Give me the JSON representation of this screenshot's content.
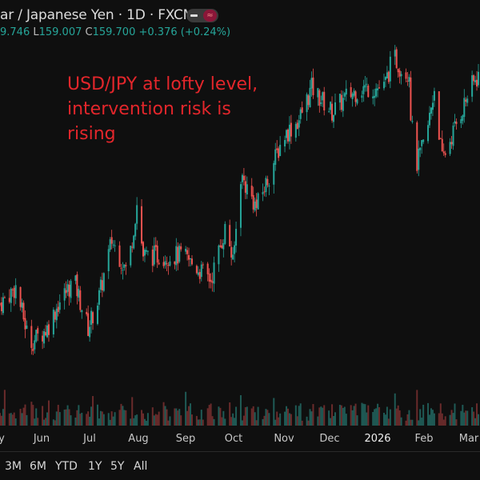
{
  "header": {
    "title": "ar / Japanese Yen · 1D · FXCM",
    "ohlc": {
      "h": "9.746",
      "l_label": "L",
      "l": "159.007",
      "c_label": "C",
      "c": "159.700",
      "change": "+0.376 (+0.24%)"
    }
  },
  "annotation": [
    "USD/JPY at lofty level,",
    "intervention risk is",
    "rising"
  ],
  "colors": {
    "up": "#26a69a",
    "down": "#ef5350",
    "annotation": "#e3262b",
    "background": "#0f0f0f"
  },
  "x_axis_labels": [
    "y",
    "Jun",
    "Jul",
    "Aug",
    "Sep",
    "Oct",
    "Nov",
    "Dec",
    "2026",
    "Feb",
    "Mar"
  ],
  "range_buttons": [
    "3M",
    "6M",
    "YTD",
    "1Y",
    "5Y",
    "All"
  ],
  "chart_data": {
    "type": "candlestick",
    "title": "",
    "series_note": "approximate close path read visually (no price axis visible)",
    "y_range": [
      139,
      163
    ],
    "x_range": [
      "2025-05-06",
      "2026-03-06"
    ],
    "close_path": [
      [
        "2025-05-06",
        144.6
      ],
      [
        "2025-05-16",
        145.7
      ],
      [
        "2025-05-25",
        142.0
      ],
      [
        "2025-05-31",
        142.5
      ],
      [
        "2025-06-05",
        143.0
      ],
      [
        "2025-06-12",
        144.6
      ],
      [
        "2025-06-22",
        146.2
      ],
      [
        "2025-07-01",
        143.0
      ],
      [
        "2025-07-08",
        145.1
      ],
      [
        "2025-07-16",
        148.8
      ],
      [
        "2025-07-26",
        146.7
      ],
      [
        "2025-08-01",
        151.2
      ],
      [
        "2025-08-05",
        147.8
      ],
      [
        "2025-08-15",
        147.8
      ],
      [
        "2025-08-30",
        147.8
      ],
      [
        "2025-09-17",
        146.2
      ],
      [
        "2025-09-27",
        149.9
      ],
      [
        "2025-10-01",
        147.2
      ],
      [
        "2025-10-06",
        153.1
      ],
      [
        "2025-10-16",
        151.0
      ],
      [
        "2025-10-24",
        153.1
      ],
      [
        "2025-11-02",
        155.7
      ],
      [
        "2025-11-12",
        156.8
      ],
      [
        "2025-11-20",
        158.9
      ],
      [
        "2025-12-03",
        157.3
      ],
      [
        "2025-12-13",
        158.4
      ],
      [
        "2025-12-23",
        158.9
      ],
      [
        "2026-01-05",
        158.9
      ],
      [
        "2026-01-11",
        161.0
      ],
      [
        "2026-01-17",
        160.0
      ],
      [
        "2026-01-21",
        160.0
      ],
      [
        "2026-01-22",
        157.3
      ],
      [
        "2026-01-25",
        153.6
      ],
      [
        "2026-02-01",
        155.7
      ],
      [
        "2026-02-06",
        158.9
      ],
      [
        "2026-02-11",
        154.1
      ],
      [
        "2026-02-21",
        156.8
      ],
      [
        "2026-03-01",
        158.9
      ],
      [
        "2026-03-06",
        159.7
      ]
    ]
  }
}
